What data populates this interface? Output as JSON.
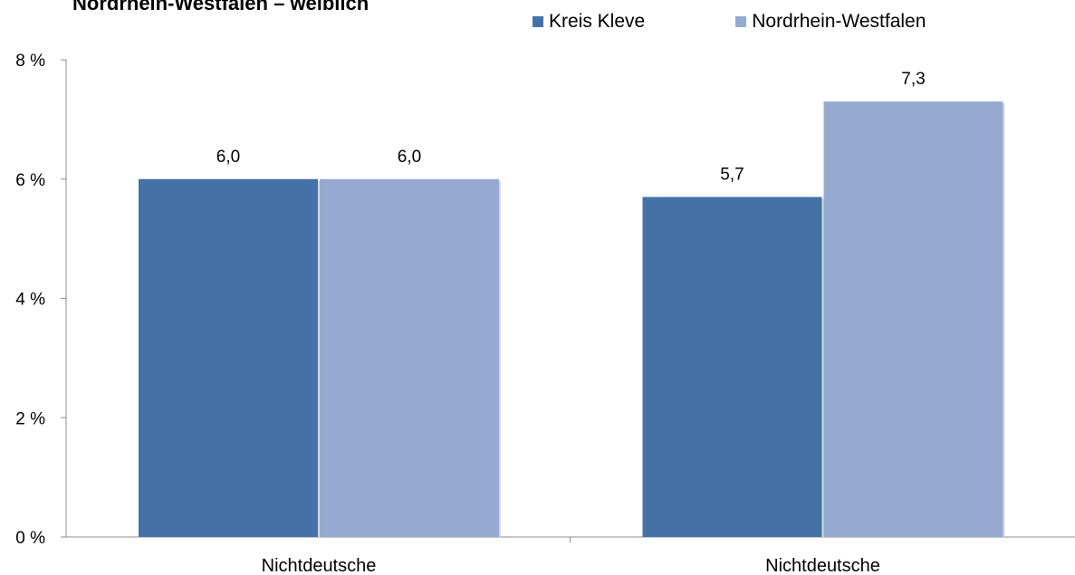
{
  "colors": {
    "kreis": "#4472A6",
    "nrw": "#95A9D1",
    "axis": "#8c8c8c"
  },
  "chart_data": {
    "type": "bar",
    "title": "Nordrhein-Westfalen – weiblich",
    "categories": [
      "Nichtdeutsche",
      "Nichtdeutsche"
    ],
    "series": [
      {
        "name": "Kreis Kleve",
        "values": [
          6.0,
          5.7
        ],
        "labels": [
          "6,0",
          "5,7"
        ]
      },
      {
        "name": "Nordrhein-Westfalen",
        "values": [
          6.0,
          7.3
        ],
        "labels": [
          "6,0",
          "7,3"
        ]
      }
    ],
    "ylim": [
      0,
      8
    ],
    "yticks": [
      0,
      2,
      4,
      6,
      8
    ],
    "ytick_labels": [
      "0 %",
      "2 %",
      "4 %",
      "6 %",
      "8 %"
    ],
    "legend_position": "top-right",
    "grid": false
  }
}
